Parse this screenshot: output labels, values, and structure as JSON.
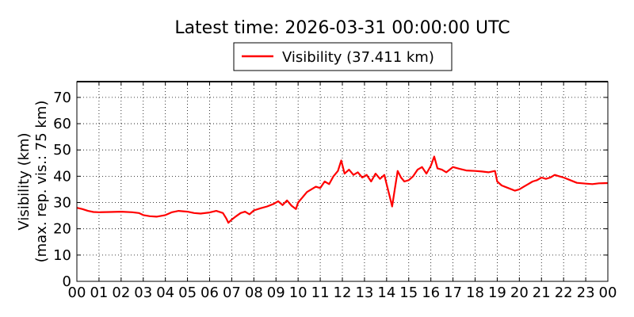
{
  "chart_data": {
    "type": "line",
    "title": "Latest time: 2026-03-31 00:00:00 UTC",
    "ylabel_line1": "Visibility (km)",
    "ylabel_line2": "(max. rep. vis.: 75 km)",
    "xlabel": "",
    "legend_placement": "top-center",
    "grid": true,
    "ylim": [
      0,
      76
    ],
    "xlim": [
      0,
      24
    ],
    "y_ticks": [
      "0",
      "10",
      "20",
      "30",
      "40",
      "50",
      "60",
      "70"
    ],
    "x_ticks": [
      "00",
      "01",
      "02",
      "03",
      "04",
      "05",
      "06",
      "07",
      "08",
      "09",
      "10",
      "11",
      "12",
      "13",
      "14",
      "15",
      "16",
      "17",
      "18",
      "19",
      "20",
      "21",
      "22",
      "23",
      "00"
    ],
    "series": [
      {
        "name": "Visibility (37.411 km)",
        "color": "#ff0000",
        "points": [
          [
            0.0,
            28.0
          ],
          [
            0.25,
            27.5
          ],
          [
            0.5,
            26.8
          ],
          [
            0.75,
            26.4
          ],
          [
            1.0,
            26.3
          ],
          [
            1.5,
            26.4
          ],
          [
            2.0,
            26.5
          ],
          [
            2.5,
            26.3
          ],
          [
            2.8,
            26.0
          ],
          [
            3.0,
            25.2
          ],
          [
            3.3,
            24.8
          ],
          [
            3.6,
            24.6
          ],
          [
            4.0,
            25.2
          ],
          [
            4.3,
            26.3
          ],
          [
            4.6,
            26.8
          ],
          [
            5.0,
            26.5
          ],
          [
            5.3,
            26.0
          ],
          [
            5.6,
            25.8
          ],
          [
            6.0,
            26.2
          ],
          [
            6.3,
            26.8
          ],
          [
            6.6,
            26.0
          ],
          [
            6.75,
            24.0
          ],
          [
            6.85,
            22.3
          ],
          [
            7.0,
            23.5
          ],
          [
            7.2,
            24.8
          ],
          [
            7.4,
            26.0
          ],
          [
            7.6,
            26.5
          ],
          [
            7.8,
            25.5
          ],
          [
            8.0,
            27.0
          ],
          [
            8.3,
            27.8
          ],
          [
            8.6,
            28.5
          ],
          [
            8.9,
            29.5
          ],
          [
            9.1,
            30.5
          ],
          [
            9.3,
            29.0
          ],
          [
            9.5,
            30.8
          ],
          [
            9.7,
            28.8
          ],
          [
            9.9,
            27.5
          ],
          [
            10.0,
            30.0
          ],
          [
            10.2,
            32.0
          ],
          [
            10.4,
            34.0
          ],
          [
            10.6,
            35.0
          ],
          [
            10.8,
            36.0
          ],
          [
            11.0,
            35.5
          ],
          [
            11.2,
            38.0
          ],
          [
            11.4,
            37.0
          ],
          [
            11.6,
            40.0
          ],
          [
            11.8,
            42.0
          ],
          [
            11.95,
            46.0
          ],
          [
            12.1,
            41.0
          ],
          [
            12.3,
            42.5
          ],
          [
            12.5,
            40.5
          ],
          [
            12.7,
            41.5
          ],
          [
            12.9,
            39.5
          ],
          [
            13.1,
            40.5
          ],
          [
            13.3,
            38.0
          ],
          [
            13.5,
            41.0
          ],
          [
            13.7,
            39.0
          ],
          [
            13.9,
            40.5
          ],
          [
            14.0,
            37.0
          ],
          [
            14.15,
            32.0
          ],
          [
            14.25,
            28.5
          ],
          [
            14.35,
            34.0
          ],
          [
            14.5,
            42.0
          ],
          [
            14.65,
            39.5
          ],
          [
            14.8,
            38.0
          ],
          [
            15.0,
            38.5
          ],
          [
            15.2,
            40.0
          ],
          [
            15.4,
            42.5
          ],
          [
            15.6,
            43.5
          ],
          [
            15.8,
            41.0
          ],
          [
            16.0,
            44.0
          ],
          [
            16.15,
            47.5
          ],
          [
            16.3,
            43.0
          ],
          [
            16.5,
            42.5
          ],
          [
            16.7,
            41.5
          ],
          [
            17.0,
            43.5
          ],
          [
            17.3,
            42.8
          ],
          [
            17.6,
            42.2
          ],
          [
            18.0,
            42.0
          ],
          [
            18.3,
            41.8
          ],
          [
            18.6,
            41.5
          ],
          [
            18.9,
            42.0
          ],
          [
            19.0,
            38.0
          ],
          [
            19.2,
            36.5
          ],
          [
            19.5,
            35.5
          ],
          [
            19.8,
            34.5
          ],
          [
            20.0,
            35.0
          ],
          [
            20.2,
            36.0
          ],
          [
            20.4,
            37.0
          ],
          [
            20.6,
            38.0
          ],
          [
            20.8,
            38.5
          ],
          [
            21.0,
            39.5
          ],
          [
            21.2,
            39.0
          ],
          [
            21.4,
            39.5
          ],
          [
            21.6,
            40.5
          ],
          [
            21.8,
            40.0
          ],
          [
            22.0,
            39.5
          ],
          [
            22.3,
            38.5
          ],
          [
            22.6,
            37.5
          ],
          [
            23.0,
            37.2
          ],
          [
            23.3,
            37.0
          ],
          [
            23.6,
            37.3
          ],
          [
            24.0,
            37.4
          ]
        ]
      }
    ]
  }
}
